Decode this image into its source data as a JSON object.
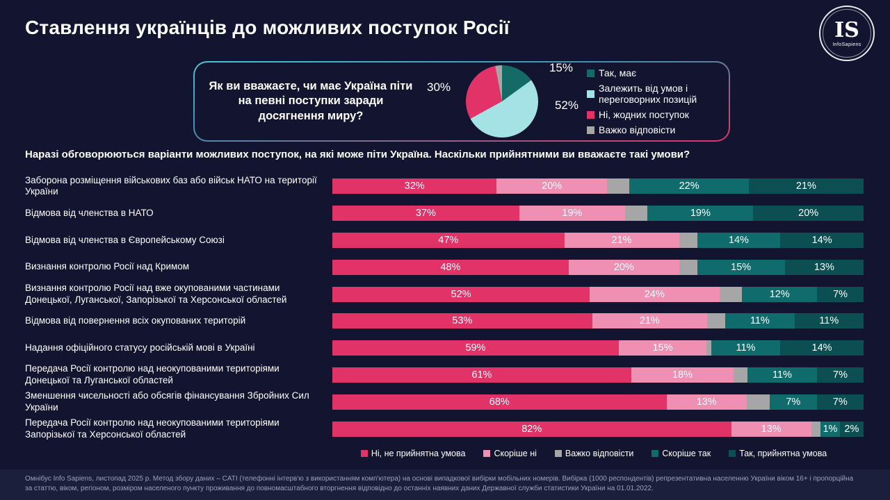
{
  "page": {
    "title": "Ставлення українців до можливих поступок Росії",
    "logo": {
      "initials": "IS",
      "name": "InfoSapiens"
    },
    "section_heading": "Наразі обговорюються варіанти можливих поступок, на які може піти Україна. Наскільки прийнятними ви вважаєте такі умови?",
    "footnote": "Омнібус Info Sapiens, листопад 2025 р. Метод збору даних – CATI (телефонні інтерв'ю з використанням комп'ютера) на основі випадкової вибірки мобільних номерів. Вибірка (1000 респондентів) репрезентативна населенню України віком 16+ і пропорційна за статтю, віком, регіоном, розміром населеного пункту проживання до повномасштабного вторгнення відповідно до останніх наявних даних Державної служби статистики України на 01.01.2022."
  },
  "colors": {
    "background": "#131430",
    "panel_border_top": "#45c8d3",
    "panel_border_bottom": "#e23369",
    "footer_band": "#1c1f3c"
  },
  "chart_data": [
    {
      "type": "pie",
      "title": "Як ви вважаєте, чи має Україна піти на певні поступки заради досягнення миру?",
      "legend_position": "right",
      "slices": [
        {
          "label": "Так, має",
          "value": 15,
          "color": "#156a67"
        },
        {
          "label": "Залежить від умов і переговорних позицій",
          "value": 52,
          "color": "#a5e2e6"
        },
        {
          "label": "Ні, жодних поступок",
          "value": 30,
          "color": "#e23369"
        },
        {
          "label": "Важко відповісти",
          "value": 3,
          "color": "#a6a6a6"
        }
      ],
      "callout_labels": [
        "15%",
        "52%",
        "30%"
      ]
    },
    {
      "type": "bar",
      "stacked": true,
      "orientation": "horizontal",
      "xlim": [
        0,
        100
      ],
      "grid": false,
      "legend_position": "bottom",
      "categories": [
        "Заборона розміщення військових баз або військ НАТО на території України",
        "Відмова від членства в НАТО",
        "Відмова від членства в Європейському Союзі",
        "Визнання контролю Росії над Кримом",
        "Визнання контролю Росії над вже окупованими частинами Донецької, Луганської, Запорізької та Херсонської областей",
        "Відмова від повернення всіх окупованих територій",
        "Надання офіційного статусу російській мові в Україні",
        "Передача Росії контролю над неокупованими територіями Донецької та Луганської областей",
        "Зменшення чисельності або обсягів фінансування Збройних Сил України",
        "Передача Росії контролю над неокупованими територіями Запорізької та Херсонської областей"
      ],
      "series": [
        {
          "name": "Ні, не прийнятна умова",
          "color": "#e23369",
          "values": [
            32,
            37,
            47,
            48,
            52,
            53,
            59,
            61,
            68,
            82
          ]
        },
        {
          "name": "Скоріше ні",
          "color": "#ef8fb2",
          "values": [
            20,
            19,
            21,
            20,
            24,
            21,
            15,
            18,
            13,
            13
          ]
        },
        {
          "name": "Важко відповісти",
          "color": "#a6a6a6",
          "labels_hidden": true,
          "values": [
            5,
            5,
            4,
            4,
            5,
            4,
            1,
            3,
            5,
            2
          ]
        },
        {
          "name": "Скоріше так",
          "color": "#0f6b6c",
          "values": [
            22,
            19,
            14,
            15,
            12,
            11,
            11,
            11,
            7,
            1
          ]
        },
        {
          "name": "Так, прийнятна умова",
          "color": "#0b4f52",
          "values": [
            21,
            20,
            14,
            13,
            7,
            11,
            14,
            7,
            7,
            2
          ]
        }
      ]
    }
  ]
}
